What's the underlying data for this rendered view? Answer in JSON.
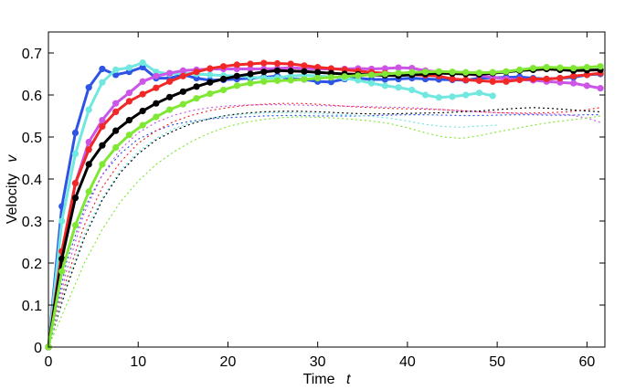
{
  "chart_data": {
    "type": "line",
    "title": "",
    "xlabel": "Time",
    "xlabel_var": "t",
    "ylabel": "Velocity",
    "ylabel_var": "v",
    "xlim": [
      0,
      62
    ],
    "ylim": [
      0,
      0.75
    ],
    "xticks": [
      0,
      10,
      20,
      30,
      40,
      50,
      60
    ],
    "yticks": [
      0,
      0.1,
      0.2,
      0.3,
      0.4,
      0.5,
      0.6,
      0.7
    ],
    "grid": false,
    "legend": "none",
    "series": [
      {
        "color": "#2e54e6",
        "style": "solid-marker",
        "x": [
          0,
          1.5,
          3,
          4.5,
          6,
          7.5,
          9,
          10.5,
          12,
          13.5,
          15,
          16.5,
          18,
          19.5,
          21,
          22.5,
          24,
          25.5,
          27,
          28.5,
          30,
          31.5,
          33,
          34.5,
          36,
          37.5,
          39,
          40.5,
          42,
          43.5,
          45,
          46.5,
          48,
          49.5,
          51,
          52.5,
          54,
          55.5,
          57,
          58.5,
          60,
          61.5
        ],
        "y": [
          0,
          0.335,
          0.51,
          0.618,
          0.662,
          0.648,
          0.655,
          0.666,
          0.64,
          0.64,
          0.648,
          0.64,
          0.635,
          0.636,
          0.638,
          0.64,
          0.642,
          0.645,
          0.638,
          0.637,
          0.632,
          0.631,
          0.638,
          0.64,
          0.637,
          0.637,
          0.638,
          0.64,
          0.638,
          0.637,
          0.636,
          0.635,
          0.64,
          0.641,
          0.642,
          0.643,
          0.64,
          0.638,
          0.64,
          0.642,
          0.648,
          0.65
        ]
      },
      {
        "color": "#70e8e0",
        "style": "solid-marker",
        "x": [
          0,
          1.5,
          3,
          4.5,
          6,
          7.5,
          9,
          10.5,
          12,
          13.5,
          15,
          16.5,
          18,
          19.5,
          21,
          22.5,
          24,
          25.5,
          27,
          28.5,
          30,
          31.5,
          33,
          34.5,
          36,
          37.5,
          39,
          40.5,
          42,
          43.5,
          45,
          46.5,
          48,
          49.5
        ],
        "y": [
          0,
          0.3,
          0.46,
          0.565,
          0.63,
          0.66,
          0.665,
          0.677,
          0.655,
          0.65,
          0.652,
          0.65,
          0.648,
          0.646,
          0.645,
          0.643,
          0.64,
          0.641,
          0.645,
          0.647,
          0.645,
          0.643,
          0.64,
          0.635,
          0.628,
          0.622,
          0.618,
          0.612,
          0.6,
          0.594,
          0.596,
          0.6,
          0.605,
          0.598
        ]
      },
      {
        "color": "#cc55e6",
        "style": "solid-marker",
        "x": [
          0,
          1.5,
          3,
          4.5,
          6,
          7.5,
          9,
          10.5,
          12,
          13.5,
          15,
          16.5,
          18,
          19.5,
          21,
          22.5,
          24,
          25.5,
          27,
          28.5,
          30,
          31.5,
          33,
          34.5,
          36,
          37.5,
          39,
          40.5,
          42,
          43.5,
          45,
          46.5,
          48,
          49.5,
          51,
          52.5,
          54,
          55.5,
          57,
          58.5,
          60,
          61.5
        ],
        "y": [
          0,
          0.21,
          0.39,
          0.488,
          0.54,
          0.58,
          0.605,
          0.632,
          0.645,
          0.652,
          0.658,
          0.66,
          0.662,
          0.662,
          0.662,
          0.662,
          0.662,
          0.663,
          0.665,
          0.663,
          0.662,
          0.662,
          0.662,
          0.663,
          0.662,
          0.663,
          0.665,
          0.664,
          0.658,
          0.655,
          0.653,
          0.65,
          0.647,
          0.642,
          0.638,
          0.637,
          0.635,
          0.632,
          0.63,
          0.628,
          0.622,
          0.616
        ]
      },
      {
        "color": "#f02828",
        "style": "solid-marker",
        "x": [
          0,
          1.5,
          3,
          4.5,
          6,
          7.5,
          9,
          10.5,
          12,
          13.5,
          15,
          16.5,
          18,
          19.5,
          21,
          22.5,
          24,
          25.5,
          27,
          28.5,
          30,
          31.5,
          33,
          34.5,
          36,
          37.5,
          39,
          40.5,
          42,
          43.5,
          45,
          46.5,
          48,
          49.5,
          51,
          52.5,
          54,
          55.5,
          57,
          58.5,
          60,
          61.5
        ],
        "y": [
          0,
          0.228,
          0.39,
          0.47,
          0.525,
          0.56,
          0.585,
          0.602,
          0.617,
          0.632,
          0.645,
          0.655,
          0.663,
          0.668,
          0.672,
          0.674,
          0.676,
          0.675,
          0.674,
          0.67,
          0.666,
          0.663,
          0.66,
          0.657,
          0.654,
          0.652,
          0.65,
          0.648,
          0.647,
          0.645,
          0.638,
          0.636,
          0.634,
          0.632,
          0.632,
          0.636,
          0.638,
          0.638,
          0.64,
          0.645,
          0.648,
          0.652
        ]
      },
      {
        "color": "#000000",
        "style": "solid-marker",
        "x": [
          0,
          1.5,
          3,
          4.5,
          6,
          7.5,
          9,
          10.5,
          12,
          13.5,
          15,
          16.5,
          18,
          19.5,
          21,
          22.5,
          24,
          25.5,
          27,
          28.5,
          30,
          31.5,
          33,
          34.5,
          36,
          37.5,
          39,
          40.5,
          42,
          43.5,
          45,
          46.5,
          48,
          49.5,
          51,
          52.5,
          54,
          55.5,
          57,
          58.5,
          60,
          61.5
        ],
        "y": [
          0,
          0.21,
          0.355,
          0.435,
          0.48,
          0.515,
          0.54,
          0.562,
          0.58,
          0.595,
          0.608,
          0.62,
          0.63,
          0.638,
          0.645,
          0.65,
          0.655,
          0.658,
          0.657,
          0.656,
          0.654,
          0.652,
          0.65,
          0.649,
          0.648,
          0.647,
          0.646,
          0.648,
          0.65,
          0.652,
          0.651,
          0.65,
          0.649,
          0.652,
          0.655,
          0.658,
          0.66,
          0.662,
          0.66,
          0.658,
          0.659,
          0.66
        ]
      },
      {
        "color": "#80e834",
        "style": "solid-marker",
        "x": [
          0,
          1.5,
          3,
          4.5,
          6,
          7.5,
          9,
          10.5,
          12,
          13.5,
          15,
          16.5,
          18,
          19.5,
          21,
          22.5,
          24,
          25.5,
          27,
          28.5,
          30,
          31.5,
          33,
          34.5,
          36,
          37.5,
          39,
          40.5,
          42,
          43.5,
          45,
          46.5,
          48,
          49.5,
          51,
          52.5,
          54,
          55.5,
          57,
          58.5,
          60,
          61.5
        ],
        "y": [
          0,
          0.18,
          0.29,
          0.37,
          0.435,
          0.475,
          0.505,
          0.528,
          0.548,
          0.565,
          0.578,
          0.592,
          0.603,
          0.612,
          0.622,
          0.628,
          0.632,
          0.634,
          0.635,
          0.637,
          0.64,
          0.642,
          0.644,
          0.646,
          0.648,
          0.65,
          0.652,
          0.654,
          0.655,
          0.656,
          0.655,
          0.654,
          0.653,
          0.654,
          0.656,
          0.66,
          0.664,
          0.666,
          0.665,
          0.664,
          0.666,
          0.668
        ]
      },
      {
        "color": "#2e54e6",
        "style": "dotted",
        "x": [
          0,
          2,
          4,
          6,
          8,
          10,
          12,
          14,
          16,
          18,
          20,
          22,
          24,
          26,
          28,
          30,
          32,
          34,
          36,
          38,
          40,
          42,
          44,
          46,
          48,
          50,
          52,
          54,
          56,
          58,
          60,
          61.5
        ],
        "y": [
          0,
          0.2,
          0.33,
          0.41,
          0.46,
          0.495,
          0.515,
          0.53,
          0.538,
          0.543,
          0.546,
          0.548,
          0.55,
          0.551,
          0.551,
          0.55,
          0.55,
          0.55,
          0.551,
          0.552,
          0.553,
          0.553,
          0.552,
          0.551,
          0.551,
          0.552,
          0.553,
          0.553,
          0.552,
          0.552,
          0.553,
          0.553
        ]
      },
      {
        "color": "#cc55e6",
        "style": "dotted",
        "x": [
          0,
          2,
          4,
          6,
          8,
          10,
          12,
          14,
          16,
          18,
          20,
          22,
          24,
          26,
          28,
          30,
          32,
          34,
          36,
          38,
          40,
          42,
          44,
          46,
          48,
          50,
          52,
          54,
          56,
          58,
          60,
          61.5
        ],
        "y": [
          0,
          0.18,
          0.32,
          0.41,
          0.47,
          0.51,
          0.535,
          0.552,
          0.563,
          0.57,
          0.574,
          0.576,
          0.577,
          0.577,
          0.576,
          0.575,
          0.574,
          0.573,
          0.572,
          0.571,
          0.57,
          0.568,
          0.565,
          0.562,
          0.56,
          0.558,
          0.556,
          0.555,
          0.555,
          0.553,
          0.545,
          0.535
        ]
      },
      {
        "color": "#f02828",
        "style": "dotted",
        "x": [
          0,
          2,
          4,
          6,
          8,
          10,
          12,
          14,
          16,
          18,
          20,
          22,
          24,
          26,
          28,
          30,
          32,
          34,
          36,
          38,
          40,
          42,
          44,
          46,
          48,
          50,
          52,
          54,
          56,
          58,
          60,
          61.5
        ],
        "y": [
          0,
          0.16,
          0.29,
          0.38,
          0.44,
          0.485,
          0.515,
          0.537,
          0.552,
          0.563,
          0.57,
          0.575,
          0.578,
          0.58,
          0.58,
          0.578,
          0.575,
          0.572,
          0.57,
          0.568,
          0.567,
          0.566,
          0.565,
          0.563,
          0.56,
          0.558,
          0.557,
          0.557,
          0.558,
          0.56,
          0.565,
          0.57
        ]
      },
      {
        "color": "#000000",
        "style": "dotted",
        "x": [
          0,
          2,
          4,
          6,
          8,
          10,
          12,
          14,
          16,
          18,
          20,
          22,
          24,
          26,
          28,
          30,
          32,
          34,
          36,
          38,
          40,
          42,
          44,
          46,
          48,
          50,
          52,
          54,
          56,
          58,
          60,
          61.5
        ],
        "y": [
          0,
          0.14,
          0.26,
          0.35,
          0.415,
          0.46,
          0.493,
          0.515,
          0.532,
          0.544,
          0.552,
          0.557,
          0.56,
          0.561,
          0.561,
          0.56,
          0.558,
          0.556,
          0.555,
          0.555,
          0.556,
          0.557,
          0.558,
          0.56,
          0.562,
          0.565,
          0.568,
          0.57,
          0.568,
          0.565,
          0.562,
          0.56
        ]
      },
      {
        "color": "#70e8e0",
        "style": "dotted",
        "x": [
          0,
          2,
          4,
          6,
          8,
          10,
          12,
          14,
          16,
          18,
          20,
          22,
          24,
          26,
          28,
          30,
          32,
          34,
          36,
          38,
          40,
          42,
          44,
          46,
          48,
          50
        ],
        "y": [
          0,
          0.15,
          0.27,
          0.355,
          0.42,
          0.465,
          0.497,
          0.52,
          0.535,
          0.545,
          0.551,
          0.555,
          0.557,
          0.558,
          0.557,
          0.556,
          0.554,
          0.552,
          0.549,
          0.545,
          0.538,
          0.53,
          0.525,
          0.523,
          0.526,
          0.528
        ]
      },
      {
        "color": "#80e834",
        "style": "dotted",
        "x": [
          0,
          2,
          4,
          6,
          8,
          10,
          12,
          14,
          16,
          18,
          20,
          22,
          24,
          26,
          28,
          30,
          32,
          34,
          36,
          38,
          40,
          42,
          44,
          46,
          48,
          50,
          52,
          54,
          56,
          58,
          60,
          61.5
        ],
        "y": [
          0,
          0.1,
          0.2,
          0.28,
          0.345,
          0.395,
          0.435,
          0.465,
          0.49,
          0.51,
          0.525,
          0.535,
          0.542,
          0.546,
          0.548,
          0.547,
          0.545,
          0.542,
          0.538,
          0.532,
          0.522,
          0.51,
          0.5,
          0.497,
          0.503,
          0.512,
          0.52,
          0.528,
          0.535,
          0.54,
          0.545,
          0.55
        ]
      }
    ]
  }
}
